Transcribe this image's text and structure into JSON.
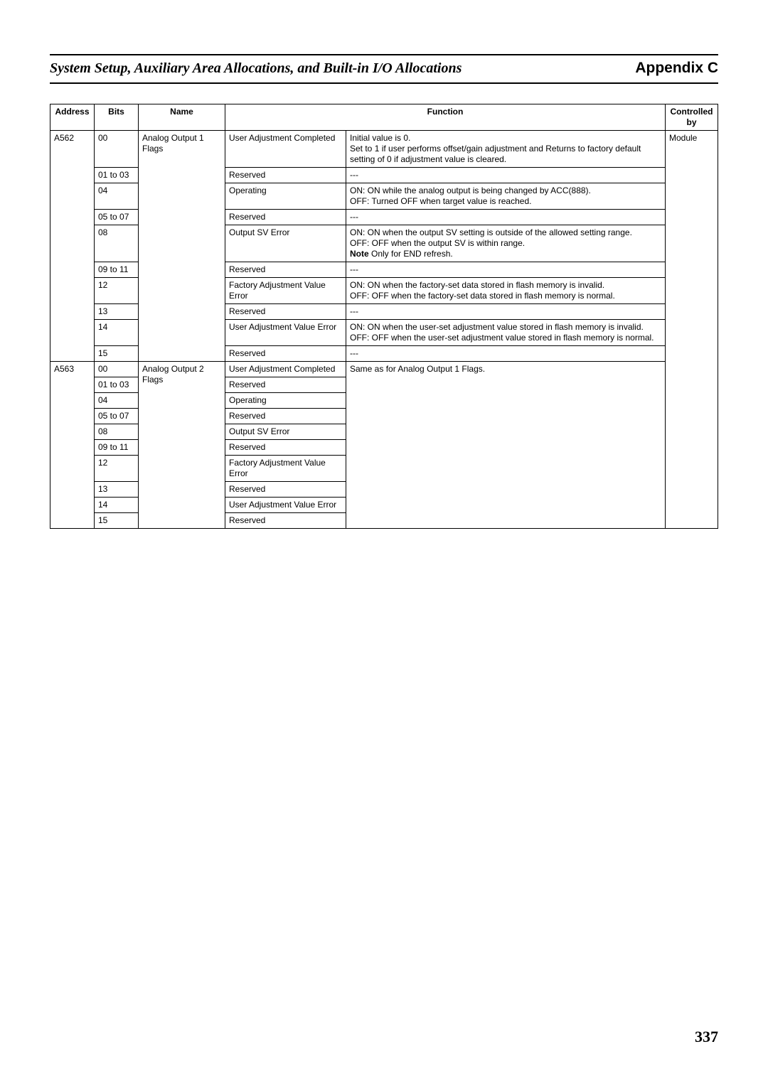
{
  "header": {
    "left": "System Setup, Auxiliary Area Allocations, and Built-in I/O Allocations",
    "right": "Appendix C"
  },
  "table": {
    "headers": {
      "address": "Address",
      "bits": "Bits",
      "name": "Name",
      "function": "Function",
      "controlled_by": "Controlled by"
    },
    "controlled_by_value": "Module",
    "groups": [
      {
        "address": "A562",
        "name": "Analog Output 1 Flags",
        "rows": [
          {
            "bits": "00",
            "fn1": "User Adjustment Completed",
            "fn2": "Initial value is 0.\nSet to 1 if user performs offset/gain adjustment and Returns to factory default setting of 0 if adjustment value is cleared."
          },
          {
            "bits": "01 to 03",
            "fn1": "Reserved",
            "fn2": "---"
          },
          {
            "bits": "04",
            "fn1": "Operating",
            "fn2": "ON: ON while the analog output is being changed by ACC(888).\nOFF: Turned OFF when target value is reached."
          },
          {
            "bits": "05 to 07",
            "fn1": "Reserved",
            "fn2": "---"
          },
          {
            "bits": "08",
            "fn1": "Output SV Error",
            "fn2_lines": [
              "ON: ON when the output SV setting is outside of the allowed setting range.",
              "OFF: OFF when the output SV is within range."
            ],
            "note_label": "Note",
            "note_text": "  Only for END refresh."
          },
          {
            "bits": "09 to 11",
            "fn1": "Reserved",
            "fn2": "---"
          },
          {
            "bits": "12",
            "fn1": "Factory Adjustment Value Error",
            "fn2": "ON: ON when the factory-set data stored in flash memory is invalid.\nOFF: OFF when the factory-set data stored in flash memory is normal."
          },
          {
            "bits": "13",
            "fn1": "Reserved",
            "fn2": "---"
          },
          {
            "bits": "14",
            "fn1": "User Adjustment Value Error",
            "fn2": "ON: ON when the user-set adjustment value stored in flash memory is invalid.\nOFF: OFF when the user-set adjustment value stored in flash memory is normal."
          },
          {
            "bits": "15",
            "fn1": "Reserved",
            "fn2": "---"
          }
        ]
      },
      {
        "address": "A563",
        "name": "Analog Output 2 Flags",
        "shared_fn2": "Same as for Analog Output 1 Flags.",
        "rows": [
          {
            "bits": "00",
            "fn1": "User Adjustment Completed"
          },
          {
            "bits": "01 to 03",
            "fn1": "Reserved"
          },
          {
            "bits": "04",
            "fn1": "Operating"
          },
          {
            "bits": "05 to 07",
            "fn1": "Reserved"
          },
          {
            "bits": "08",
            "fn1": "Output SV Error"
          },
          {
            "bits": "09 to 11",
            "fn1": "Reserved"
          },
          {
            "bits": "12",
            "fn1": "Factory Adjustment Value Error"
          },
          {
            "bits": "13",
            "fn1": "Reserved"
          },
          {
            "bits": "14",
            "fn1": "User Adjustment Value Error"
          },
          {
            "bits": "15",
            "fn1": "Reserved"
          }
        ]
      }
    ]
  },
  "page_number": "337"
}
